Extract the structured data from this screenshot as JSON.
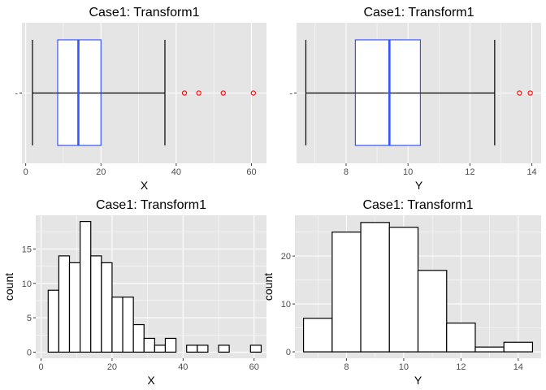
{
  "colors": {
    "panel_bg": "#e5e5e5",
    "grid_major": "#ffffff",
    "box_border": "#3355ff",
    "whisker": "#000000",
    "outlier": "#ff0000",
    "bar_fill": "#ffffff",
    "bar_border": "#000000"
  },
  "chart_data": [
    {
      "type": "boxplot",
      "title": "Case1: Transform1",
      "xlabel": "X",
      "ylabel": "",
      "xlim": [
        -1,
        64
      ],
      "xticks": [
        0,
        20,
        40,
        60
      ],
      "xtick_labels": [
        "0",
        "20",
        "40",
        "60"
      ],
      "y_tick_labels": [
        "-"
      ],
      "grid": true,
      "stats": {
        "min": 1.8,
        "q1": 8.5,
        "median": 14.0,
        "q3": 20.0,
        "max": 37.0
      },
      "outliers": [
        42.2,
        46.0,
        52.5,
        60.5
      ]
    },
    {
      "type": "boxplot",
      "title": "Case1: Transform1",
      "xlabel": "Y",
      "ylabel": "",
      "xlim": [
        6.4,
        14.3
      ],
      "xticks": [
        8,
        10,
        12,
        14
      ],
      "xtick_labels": [
        "8",
        "10",
        "12",
        "14"
      ],
      "y_tick_labels": [
        "-"
      ],
      "grid": true,
      "stats": {
        "min": 6.7,
        "q1": 8.3,
        "median": 9.4,
        "q3": 10.4,
        "max": 12.8
      },
      "outliers": [
        13.6,
        13.95
      ]
    },
    {
      "type": "bar",
      "subtype": "histogram",
      "title": "Case1: Transform1",
      "xlabel": "X",
      "ylabel": "count",
      "xlim": [
        -1.5,
        63.5
      ],
      "ylim": [
        -0.9,
        19.9
      ],
      "xticks": [
        0,
        20,
        40,
        60
      ],
      "xtick_labels": [
        "0",
        "20",
        "40",
        "60"
      ],
      "yticks": [
        0,
        5,
        10,
        15
      ],
      "ytick_labels": [
        "0",
        "5",
        "10",
        "15"
      ],
      "grid": true,
      "bin_start": 2,
      "bin_width": 3,
      "values": [
        9,
        14,
        13,
        19,
        14,
        13,
        8,
        8,
        4,
        2,
        1,
        2,
        0,
        1,
        1,
        0,
        1,
        0,
        0,
        1
      ]
    },
    {
      "type": "bar",
      "subtype": "histogram",
      "title": "Case1: Transform1",
      "xlabel": "Y",
      "ylabel": "count",
      "xlim": [
        6.2,
        14.8
      ],
      "ylim": [
        -1.35,
        28.5
      ],
      "xticks": [
        8,
        10,
        12,
        14
      ],
      "xtick_labels": [
        "8",
        "10",
        "12",
        "14"
      ],
      "yticks": [
        0,
        10,
        20
      ],
      "ytick_labels": [
        "0",
        "10",
        "20"
      ],
      "grid": true,
      "bin_start": 6.5,
      "bin_width": 1,
      "values": [
        7,
        25,
        27,
        26,
        17,
        6,
        1,
        2
      ]
    }
  ]
}
